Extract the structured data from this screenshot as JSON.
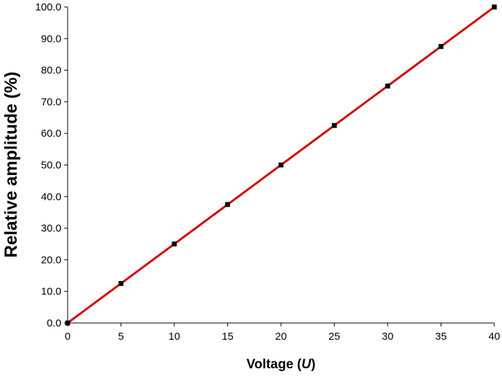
{
  "chart_data": {
    "type": "line",
    "title": "",
    "xlabel": "Voltage (",
    "xlabel_var": "U",
    "xlabel_end": ")",
    "ylabel": "Relative amplitude (%)",
    "xlim": [
      0,
      40
    ],
    "ylim": [
      0,
      100
    ],
    "x_ticks": [
      "0",
      "5",
      "10",
      "15",
      "20",
      "25",
      "30",
      "35",
      "40"
    ],
    "y_ticks": [
      "0.0",
      "10.0",
      "20.0",
      "30.0",
      "40.0",
      "50.0",
      "60.0",
      "70.0",
      "80.0",
      "90.0",
      "100.0"
    ],
    "grid": false,
    "legend": "none",
    "series": [
      {
        "x": [
          0,
          5,
          10,
          15,
          20,
          25,
          30,
          35,
          40
        ],
        "y": [
          0.0,
          12.5,
          25.0,
          37.5,
          50.0,
          62.5,
          75.0,
          87.5,
          100.0
        ],
        "line_color": "#d40000",
        "marker_color": "#000000",
        "marker": "square"
      }
    ]
  }
}
